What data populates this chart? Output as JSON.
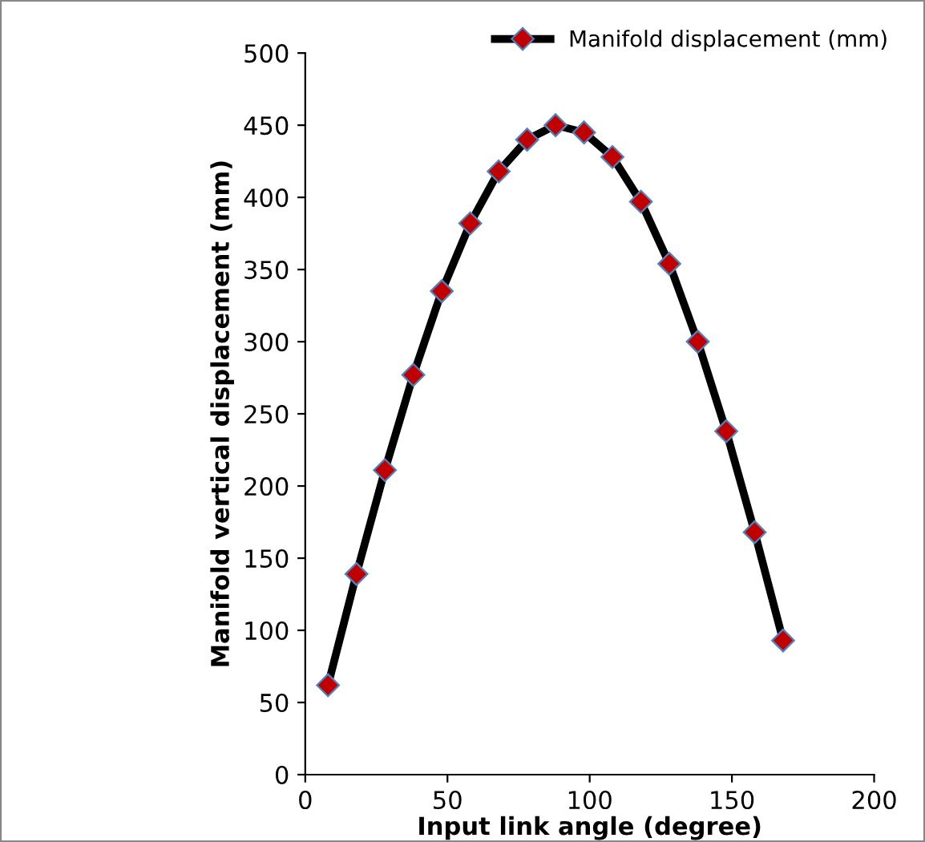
{
  "chart_data": {
    "type": "line",
    "xlabel": "Input link angle (degree)",
    "ylabel": "Manifold vertical displacement (mm)",
    "x": [
      8,
      18,
      28,
      38,
      48,
      58,
      68,
      78,
      88,
      98,
      108,
      118,
      128,
      138,
      148,
      158,
      168
    ],
    "series": [
      {
        "name": "Manifold displacement (mm)",
        "color": "#000000",
        "values": [
          62,
          139,
          211,
          277,
          335,
          382,
          418,
          440,
          450,
          445,
          428,
          397,
          354,
          300,
          238,
          168,
          93
        ]
      }
    ],
    "xlim": [
      0,
      200
    ],
    "xticks": [
      0,
      50,
      100,
      150,
      200
    ],
    "ylim": [
      0,
      500
    ],
    "yticks": [
      0,
      50,
      100,
      150,
      200,
      250,
      300,
      350,
      400,
      450,
      500
    ],
    "grid": false,
    "legend": "top right",
    "marker": "diamond",
    "line_style": "solid"
  }
}
